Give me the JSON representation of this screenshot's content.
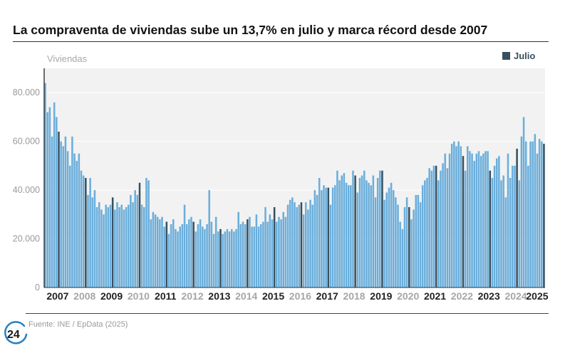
{
  "title": "La compraventa de viviendas sube un 13,7% en julio y marca récord desde 2007",
  "source": "Fuente: INE / EpData (2025)",
  "logo_text": "24",
  "chart_data": {
    "type": "bar",
    "ylabel": "Viviendas",
    "ylim": [
      0,
      90000
    ],
    "yticks": [
      0,
      20000,
      40000,
      60000,
      80000
    ],
    "ytick_labels": [
      "0",
      "20.000",
      "40.000",
      "60.000",
      "80.000"
    ],
    "grid": true,
    "legend": {
      "position": "top-right",
      "entries": [
        {
          "name": "Julio",
          "color": "#37505f"
        }
      ]
    },
    "series_color": "#6aaedb",
    "highlight_color": "#37505f",
    "highlight_month": 7,
    "start": "2007-01",
    "end": "2025-07",
    "years": [
      "2007",
      "2008",
      "2009",
      "2010",
      "2011",
      "2012",
      "2013",
      "2014",
      "2015",
      "2016",
      "2017",
      "2018",
      "2019",
      "2020",
      "2021",
      "2022",
      "2023",
      "2024",
      "2025"
    ],
    "year_label_colors": [
      "#222222",
      "#a6a6a6",
      "#222222",
      "#a6a6a6",
      "#222222",
      "#a6a6a6",
      "#222222",
      "#a6a6a6",
      "#222222",
      "#a6a6a6",
      "#222222",
      "#a6a6a6",
      "#222222",
      "#a6a6a6",
      "#222222",
      "#a6a6a6",
      "#222222",
      "#a6a6a6",
      "#222222"
    ],
    "values": [
      84000,
      72000,
      74000,
      62000,
      76000,
      70000,
      64000,
      60000,
      58000,
      62000,
      56000,
      50000,
      62000,
      55000,
      52000,
      55000,
      48000,
      46000,
      45000,
      38000,
      45000,
      37000,
      40000,
      33000,
      35000,
      32000,
      30000,
      34000,
      33000,
      34000,
      37000,
      32000,
      35000,
      33000,
      34000,
      32000,
      33000,
      34000,
      38000,
      35000,
      40000,
      38000,
      43000,
      34000,
      33000,
      45000,
      44000,
      28000,
      31000,
      30000,
      29000,
      28000,
      29000,
      25000,
      27000,
      22000,
      26000,
      28000,
      24000,
      23000,
      25000,
      26000,
      34000,
      26000,
      28000,
      29000,
      27000,
      23000,
      26000,
      28000,
      25000,
      24000,
      26000,
      40000,
      27000,
      22000,
      29000,
      23000,
      24000,
      22000,
      23000,
      24000,
      23000,
      24000,
      23000,
      24000,
      31000,
      26000,
      27000,
      26000,
      28000,
      29000,
      25000,
      25000,
      30000,
      25000,
      26000,
      27000,
      33000,
      27000,
      30000,
      28000,
      33000,
      27000,
      29000,
      28000,
      31000,
      29000,
      34000,
      36000,
      37000,
      35000,
      33000,
      34000,
      35000,
      30000,
      35000,
      32000,
      36000,
      34000,
      40000,
      38000,
      45000,
      40000,
      42000,
      41000,
      41000,
      34000,
      41000,
      42000,
      48000,
      44000,
      46000,
      47000,
      43000,
      42000,
      42000,
      48000,
      46000,
      39000,
      45000,
      46000,
      48000,
      44000,
      43000,
      42000,
      46000,
      37000,
      45000,
      48000,
      48000,
      36000,
      39000,
      41000,
      43000,
      40000,
      37000,
      34000,
      27000,
      24000,
      33000,
      37000,
      33000,
      28000,
      32000,
      38000,
      38000,
      35000,
      42000,
      44000,
      45000,
      49000,
      48000,
      50000,
      50000,
      44000,
      48000,
      51000,
      55000,
      49000,
      55000,
      59000,
      60000,
      58000,
      60000,
      58000,
      54000,
      48000,
      58000,
      56000,
      55000,
      52000,
      55000,
      56000,
      54000,
      55000,
      56000,
      56000,
      48000,
      45000,
      50000,
      53000,
      54000,
      44000,
      46000,
      37000,
      55000,
      45000,
      50000,
      50000,
      57000,
      44000,
      62000,
      70000,
      60000,
      50000,
      60000,
      60000,
      63000,
      55000,
      61000,
      60000,
      59000
    ]
  }
}
